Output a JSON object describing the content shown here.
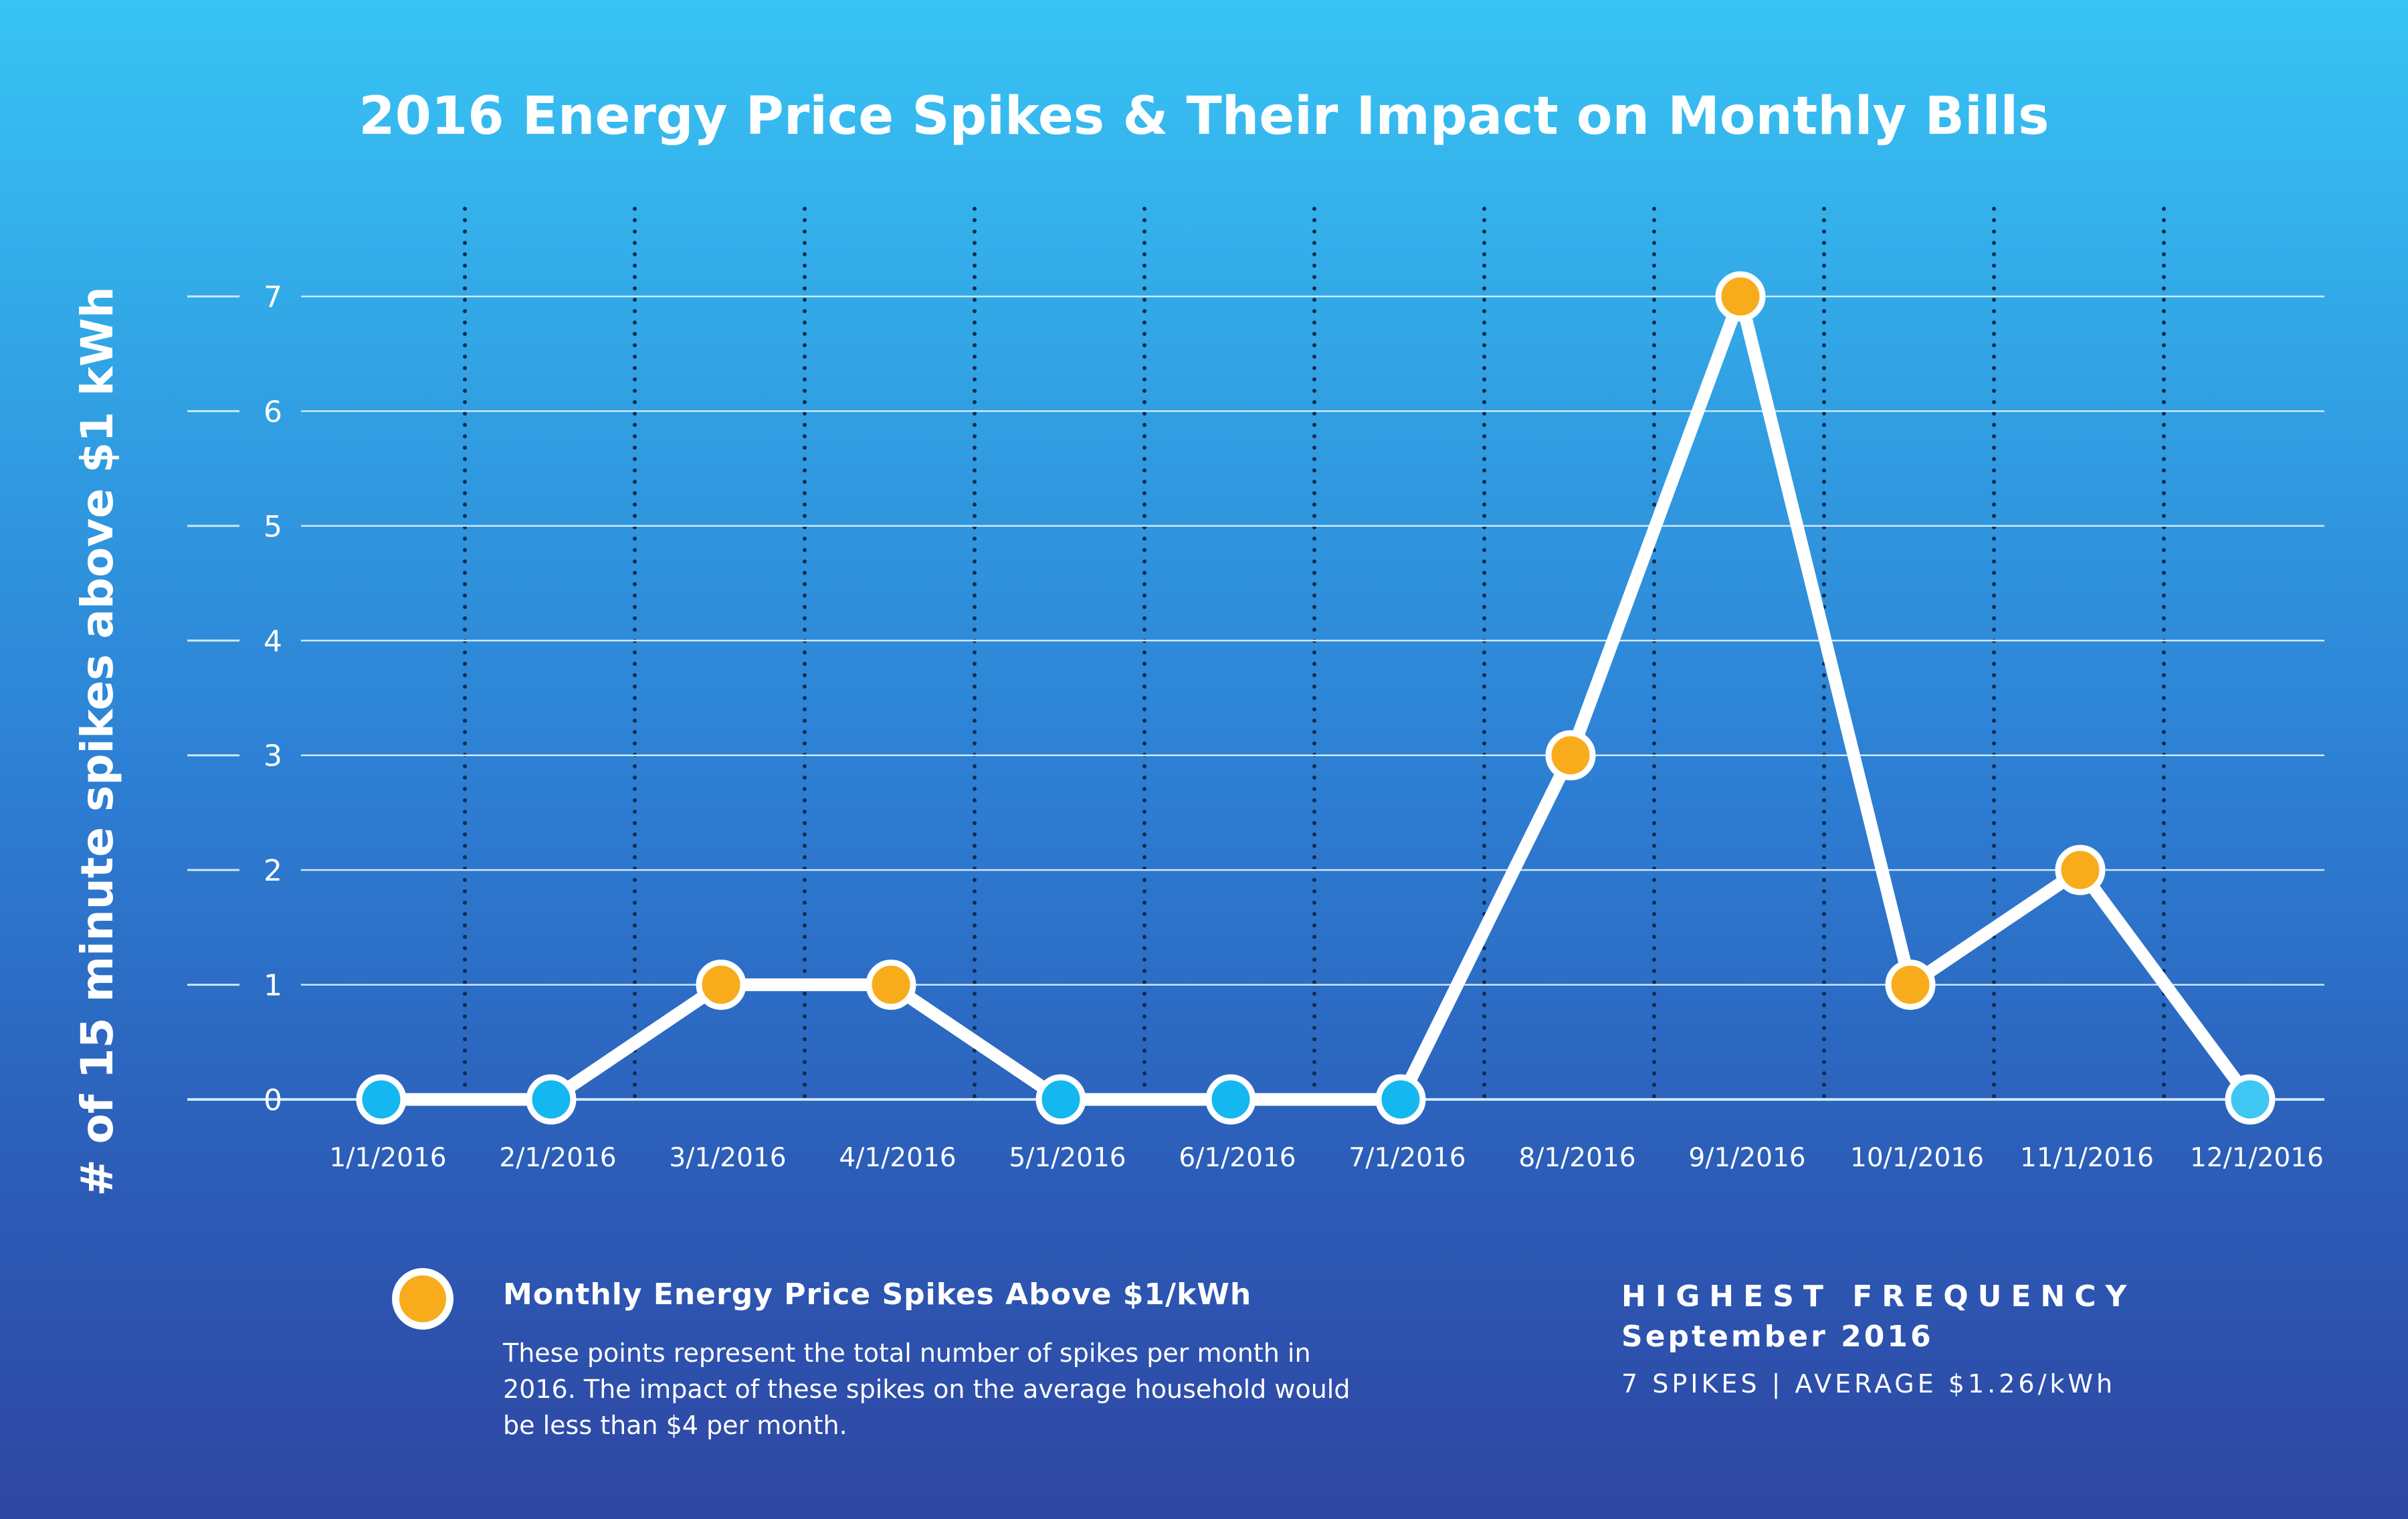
{
  "chart_data": {
    "type": "line",
    "title": "2016 Energy Price Spikes & Their Impact on Monthly Bills",
    "xlabel": "",
    "ylabel": "# of 15 minute spikes above $1 kWh",
    "categories": [
      "1/1/2016",
      "2/1/2016",
      "3/1/2016",
      "4/1/2016",
      "5/1/2016",
      "6/1/2016",
      "7/1/2016",
      "8/1/2016",
      "9/1/2016",
      "10/1/2016",
      "11/1/2016",
      "12/1/2016"
    ],
    "series": [
      {
        "name": "Monthly Energy Price Spikes Above $1/kWh",
        "values": [
          0,
          0,
          1,
          1,
          0,
          0,
          0,
          3,
          7,
          1,
          2,
          0
        ]
      }
    ],
    "ylim": [
      0,
      7
    ],
    "yticks": [
      0,
      1,
      2,
      3,
      4,
      5,
      6,
      7
    ],
    "grid": true
  },
  "colors": {
    "spike_marker": "#f8ac1c",
    "zero_marker": "#14b7ef",
    "last_marker": "#3fc6f2",
    "line": "#ffffff",
    "gridline": "#cfe8f8",
    "separator": "#0f2c4e"
  },
  "legend": {
    "title": "Monthly Energy Price Spikes Above $1/kWh",
    "description": "These points represent the total number of spikes per month in 2016. The impact of these spikes on the average household would be less than $4 per month."
  },
  "highlight": {
    "heading": "HIGHEST FREQUENCY",
    "period": "September 2016",
    "stats": "7 SPIKES | AVERAGE $1.26/kWh"
  }
}
